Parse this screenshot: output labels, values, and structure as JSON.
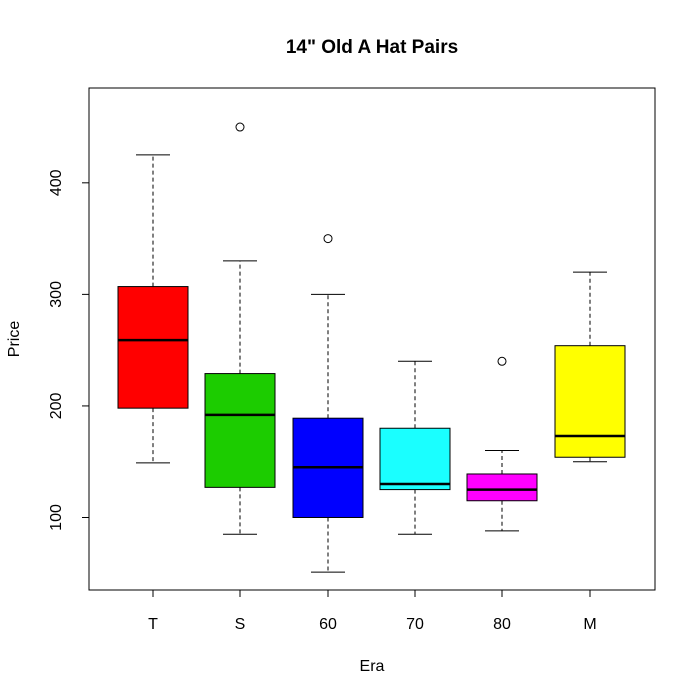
{
  "chart_data": {
    "type": "boxplot",
    "title": "14\" Old A Hat Pairs",
    "xlabel": "Era",
    "ylabel": "Price",
    "ylim": [
      35,
      485
    ],
    "yticks": [
      100,
      200,
      300,
      400
    ],
    "grid": false,
    "legend": "none",
    "categories": [
      "T",
      "S",
      "60",
      "70",
      "80",
      "M"
    ],
    "boxes": [
      {
        "category": "T",
        "color": "#FF0000",
        "whisker_low": 149,
        "q1": 198,
        "median": 259,
        "q3": 307,
        "whisker_high": 425,
        "outliers": []
      },
      {
        "category": "S",
        "color": "#1CCC00",
        "whisker_low": 85,
        "q1": 127,
        "median": 192,
        "q3": 229,
        "whisker_high": 330,
        "outliers": [
          450
        ]
      },
      {
        "category": "60",
        "color": "#0000FF",
        "whisker_low": 51,
        "q1": 100,
        "median": 145,
        "q3": 189,
        "whisker_high": 300,
        "outliers": [
          350
        ]
      },
      {
        "category": "70",
        "color": "#1AFFFF",
        "whisker_low": 85,
        "q1": 125,
        "median": 130,
        "q3": 180,
        "whisker_high": 240,
        "outliers": []
      },
      {
        "category": "80",
        "color": "#FF00FF",
        "whisker_low": 88,
        "q1": 115,
        "median": 125,
        "q3": 139,
        "whisker_high": 160,
        "outliers": [
          240
        ]
      },
      {
        "category": "M",
        "color": "#FFFF00",
        "whisker_low": 150,
        "q1": 154,
        "median": 173,
        "q3": 254,
        "whisker_high": 320,
        "outliers": []
      }
    ]
  }
}
